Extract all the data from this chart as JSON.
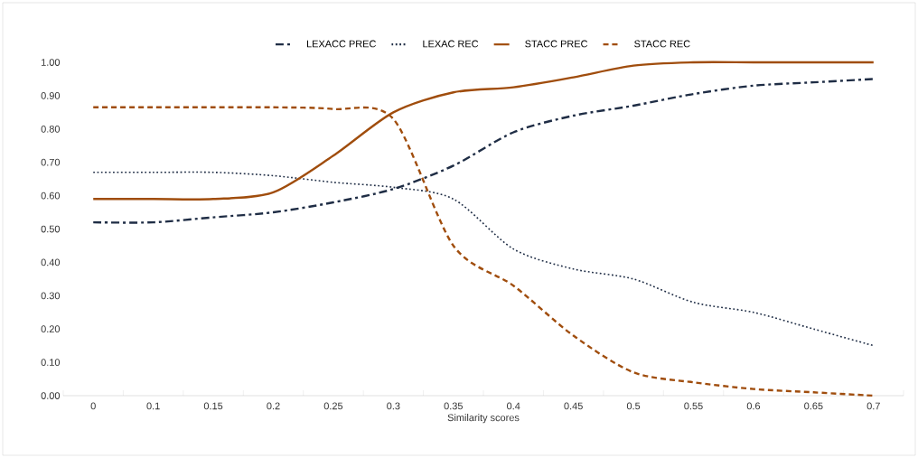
{
  "chart_data": {
    "type": "line",
    "xlabel": "Similarity scores",
    "categories": [
      "0",
      "0.1",
      "0.15",
      "0.2",
      "0.25",
      "0.3",
      "0.35",
      "0.4",
      "0.45",
      "0.5",
      "0.55",
      "0.6",
      "0.65",
      "0.7"
    ],
    "series": [
      {
        "name": "LEXACC PREC",
        "color": "#1f2d45",
        "line_style": "dashdot",
        "values": [
          0.52,
          0.52,
          0.535,
          0.55,
          0.58,
          0.62,
          0.69,
          0.79,
          0.84,
          0.87,
          0.905,
          0.93,
          0.94,
          0.95
        ]
      },
      {
        "name": "LEXAC REC",
        "color": "#1f2d45",
        "line_style": "dotted",
        "values": [
          0.67,
          0.67,
          0.67,
          0.66,
          0.64,
          0.625,
          0.59,
          0.44,
          0.38,
          0.35,
          0.28,
          0.25,
          0.2,
          0.15
        ]
      },
      {
        "name": "STACC PREC",
        "color": "#a04d0d",
        "line_style": "solid",
        "values": [
          0.59,
          0.59,
          0.59,
          0.61,
          0.72,
          0.85,
          0.91,
          0.925,
          0.955,
          0.99,
          1.0,
          1.0,
          1.0,
          1.0
        ]
      },
      {
        "name": "STACC REC",
        "color": "#a04d0d",
        "line_style": "dashed",
        "values": [
          0.865,
          0.865,
          0.865,
          0.865,
          0.86,
          0.83,
          0.45,
          0.33,
          0.18,
          0.07,
          0.04,
          0.02,
          0.01,
          0.0
        ]
      }
    ],
    "ylim": [
      0,
      1
    ],
    "yticks": [
      {
        "value": 0,
        "label": "0.00"
      },
      {
        "value": 0.1,
        "label": "0.10"
      },
      {
        "value": 0.2,
        "label": "0.20"
      },
      {
        "value": 0.3,
        "label": "0.30"
      },
      {
        "value": 0.4,
        "label": "0.40"
      },
      {
        "value": 0.5,
        "label": "0.50"
      },
      {
        "value": 0.6,
        "label": "0.60"
      },
      {
        "value": 0.7,
        "label": "0.70"
      },
      {
        "value": 0.8,
        "label": "0.80"
      },
      {
        "value": 0.9,
        "label": "0.90"
      },
      {
        "value": 1,
        "label": "1.00"
      }
    ],
    "legend": "top",
    "marker": "none",
    "grid": false
  }
}
